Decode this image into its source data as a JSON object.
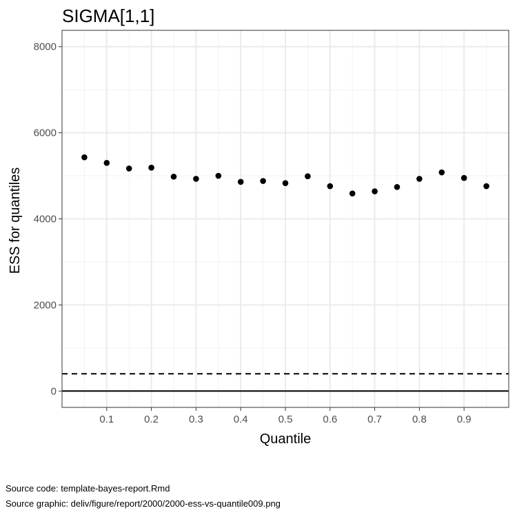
{
  "chart_data": {
    "type": "scatter",
    "title": "SIGMA[1,1]",
    "xlabel": "Quantile",
    "ylabel": "ESS for quantiles",
    "xlim": [
      0.0,
      1.0
    ],
    "ylim": [
      -380,
      8380
    ],
    "x_ticks": [
      0.1,
      0.2,
      0.3,
      0.4,
      0.5,
      0.6,
      0.7,
      0.8,
      0.9
    ],
    "x_tick_labels": [
      "0.1",
      "0.2",
      "0.3",
      "0.4",
      "0.5",
      "0.6",
      "0.7",
      "0.8",
      "0.9"
    ],
    "y_ticks": [
      0,
      2000,
      4000,
      6000,
      8000
    ],
    "y_tick_labels": [
      "0",
      "2000",
      "4000",
      "6000",
      "8000"
    ],
    "grid": true,
    "reference_lines": [
      {
        "y": 0,
        "style": "solid"
      },
      {
        "y": 400,
        "style": "dashed"
      }
    ],
    "series": [
      {
        "x": [
          0.05,
          0.1,
          0.15,
          0.2,
          0.25,
          0.3,
          0.35,
          0.4,
          0.45,
          0.5,
          0.55,
          0.6,
          0.65,
          0.7,
          0.75,
          0.8,
          0.85,
          0.9,
          0.95
        ],
        "y": [
          5430,
          5300,
          5170,
          5190,
          4980,
          4930,
          5000,
          4860,
          4880,
          4830,
          4990,
          4760,
          4590,
          4640,
          4740,
          4930,
          5080,
          4950,
          4760
        ]
      }
    ]
  },
  "captions": {
    "source_code": "Source code: template-bayes-report.Rmd",
    "source_graphic": "Source graphic: deliv/figure/report/2000/2000-ess-vs-quantile009.png"
  }
}
